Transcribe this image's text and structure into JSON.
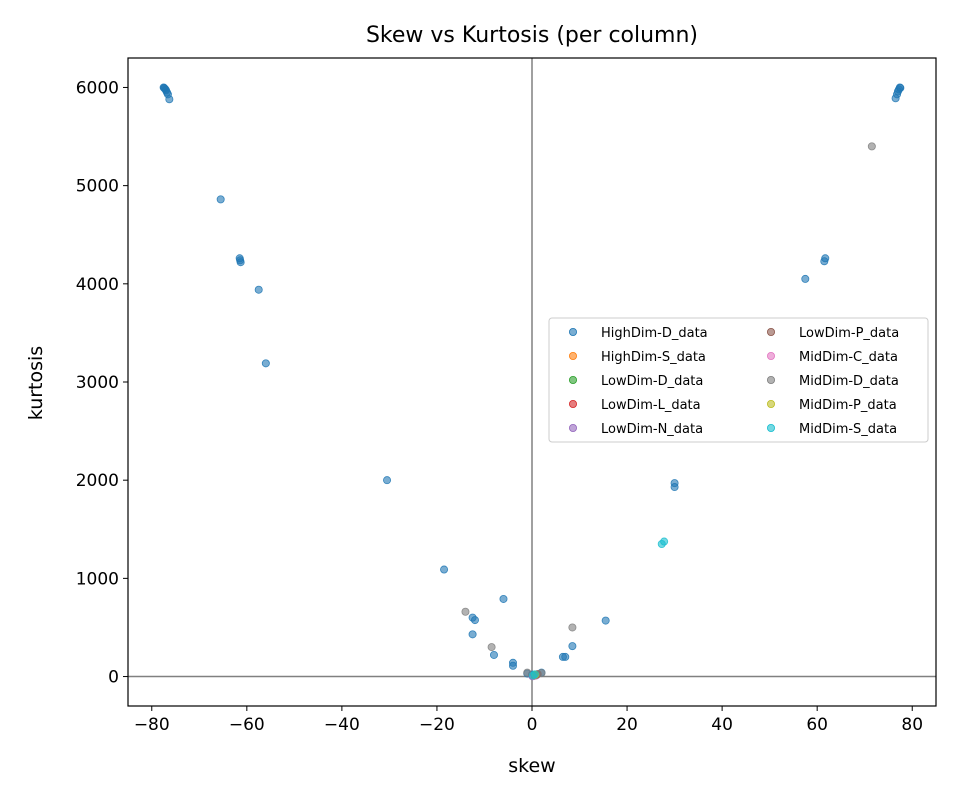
{
  "chart_data": {
    "type": "scatter",
    "title": "Skew vs Kurtosis (per column)",
    "xlabel": "skew",
    "ylabel": "kurtosis",
    "xlim": [
      -85,
      85
    ],
    "ylim": [
      -300,
      6300
    ],
    "xticks": [
      -80,
      -60,
      -40,
      -20,
      0,
      20,
      40,
      60,
      80
    ],
    "yticks": [
      0,
      1000,
      2000,
      3000,
      4000,
      5000,
      6000
    ],
    "reference_lines": {
      "x": 0,
      "y": 0
    },
    "grid": false,
    "legend": {
      "location": "center-right",
      "columns": 2
    },
    "series": [
      {
        "name": "HighDim-D_data",
        "color": "#1f77b4",
        "points": [
          [
            -77.5,
            6000
          ],
          [
            -77.3,
            5990
          ],
          [
            -77.1,
            5980
          ],
          [
            -77.4,
            5995
          ],
          [
            -77.0,
            5970
          ],
          [
            -76.8,
            5950
          ],
          [
            -76.6,
            5930
          ],
          [
            -76.3,
            5880
          ],
          [
            -65.5,
            4860
          ],
          [
            -61.5,
            4260
          ],
          [
            -61.4,
            4240
          ],
          [
            -61.3,
            4220
          ],
          [
            -57.5,
            3940
          ],
          [
            -56.0,
            3190
          ],
          [
            -30.5,
            2000
          ],
          [
            -18.5,
            1090
          ],
          [
            -12.5,
            600
          ],
          [
            -12.0,
            575
          ],
          [
            -12.5,
            430
          ],
          [
            -6.0,
            790
          ],
          [
            -8.0,
            220
          ],
          [
            -4.0,
            140
          ],
          [
            -4.0,
            110
          ],
          [
            -1.0,
            30
          ],
          [
            0.0,
            20
          ],
          [
            0.5,
            15
          ],
          [
            1.0,
            20
          ],
          [
            2.0,
            40
          ],
          [
            6.5,
            200
          ],
          [
            7.0,
            200
          ],
          [
            8.5,
            310
          ],
          [
            15.5,
            570
          ],
          [
            30.0,
            1970
          ],
          [
            30.0,
            1930
          ],
          [
            57.5,
            4050
          ],
          [
            61.5,
            4230
          ],
          [
            61.7,
            4260
          ],
          [
            76.5,
            5890
          ],
          [
            76.8,
            5930
          ],
          [
            77.0,
            5960
          ],
          [
            77.2,
            5980
          ],
          [
            77.4,
            6000
          ],
          [
            77.5,
            5995
          ]
        ]
      },
      {
        "name": "HighDim-S_data",
        "color": "#ff7f0e",
        "points": [
          [
            0.3,
            10
          ],
          [
            0.8,
            15
          ]
        ]
      },
      {
        "name": "LowDim-D_data",
        "color": "#2ca02c",
        "points": [
          [
            0.2,
            5
          ],
          [
            0.6,
            10
          ]
        ]
      },
      {
        "name": "LowDim-L_data",
        "color": "#d62728",
        "points": [
          [
            0.4,
            8
          ]
        ]
      },
      {
        "name": "LowDim-N_data",
        "color": "#9467bd",
        "points": [
          [
            0.1,
            3
          ],
          [
            0.9,
            12
          ]
        ]
      },
      {
        "name": "LowDim-P_data",
        "color": "#8c564b",
        "points": [
          [
            1.2,
            25
          ],
          [
            0.5,
            12
          ]
        ]
      },
      {
        "name": "MidDim-C_data",
        "color": "#e377c2",
        "points": [
          [
            0.3,
            6
          ]
        ]
      },
      {
        "name": "MidDim-D_data",
        "color": "#7f7f7f",
        "points": [
          [
            -14.0,
            660
          ],
          [
            -8.5,
            300
          ],
          [
            -1.0,
            40
          ],
          [
            0.5,
            15
          ],
          [
            2.0,
            35
          ],
          [
            8.5,
            500
          ],
          [
            71.5,
            5400
          ]
        ]
      },
      {
        "name": "MidDim-P_data",
        "color": "#bcbd22",
        "points": [
          [
            0.7,
            18
          ]
        ]
      },
      {
        "name": "MidDim-S_data",
        "color": "#17becf",
        "points": [
          [
            27.3,
            1350
          ],
          [
            27.8,
            1375
          ],
          [
            0.2,
            10
          ],
          [
            0.6,
            22
          ]
        ]
      }
    ]
  }
}
